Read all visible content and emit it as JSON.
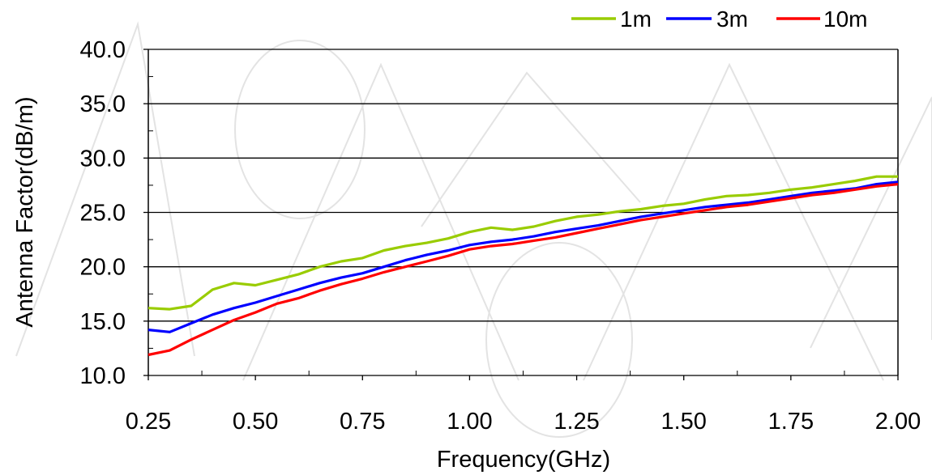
{
  "chart_data": {
    "type": "line",
    "title": "",
    "xlabel": "Frequency(GHz)",
    "ylabel": "Antenna Factor(dB/m)",
    "xlim": [
      0.25,
      2.0
    ],
    "ylim": [
      10.0,
      40.0
    ],
    "x_ticks": [
      "0.25",
      "0.50",
      "0.75",
      "1.00",
      "1.25",
      "1.50",
      "1.75",
      "2.00"
    ],
    "y_ticks": [
      "10.0",
      "15.0",
      "20.0",
      "25.0",
      "30.0",
      "35.0",
      "40.0"
    ],
    "grid": "horizontal",
    "legend_position": "top-right",
    "watermark": "AINFO",
    "colors": {
      "1m": "#99cc00",
      "3m": "#0000ff",
      "10m": "#ff0000",
      "grid": "#000000"
    },
    "x": [
      0.25,
      0.3,
      0.35,
      0.4,
      0.45,
      0.5,
      0.55,
      0.6,
      0.65,
      0.7,
      0.75,
      0.8,
      0.85,
      0.9,
      0.95,
      1.0,
      1.05,
      1.1,
      1.15,
      1.2,
      1.25,
      1.3,
      1.35,
      1.4,
      1.45,
      1.5,
      1.55,
      1.6,
      1.65,
      1.7,
      1.75,
      1.8,
      1.85,
      1.9,
      1.95,
      2.0
    ],
    "series": [
      {
        "name": "1m",
        "values": [
          16.2,
          16.1,
          16.4,
          17.9,
          18.5,
          18.3,
          18.8,
          19.3,
          20.0,
          20.5,
          20.8,
          21.5,
          21.9,
          22.2,
          22.6,
          23.2,
          23.6,
          23.4,
          23.7,
          24.2,
          24.6,
          24.8,
          25.1,
          25.3,
          25.6,
          25.8,
          26.2,
          26.5,
          26.6,
          26.8,
          27.1,
          27.3,
          27.6,
          27.9,
          28.3,
          28.3
        ]
      },
      {
        "name": "3m",
        "values": [
          14.2,
          14.0,
          14.8,
          15.6,
          16.2,
          16.7,
          17.3,
          17.9,
          18.5,
          19.0,
          19.4,
          20.0,
          20.6,
          21.1,
          21.5,
          22.0,
          22.3,
          22.5,
          22.8,
          23.2,
          23.5,
          23.8,
          24.2,
          24.6,
          24.9,
          25.2,
          25.5,
          25.7,
          25.9,
          26.2,
          26.5,
          26.8,
          27.0,
          27.2,
          27.6,
          27.8
        ]
      },
      {
        "name": "10m",
        "values": [
          11.9,
          12.3,
          13.3,
          14.2,
          15.1,
          15.8,
          16.6,
          17.1,
          17.8,
          18.4,
          18.9,
          19.5,
          20.0,
          20.5,
          21.0,
          21.6,
          21.9,
          22.1,
          22.4,
          22.7,
          23.1,
          23.5,
          23.9,
          24.3,
          24.6,
          24.9,
          25.2,
          25.5,
          25.7,
          26.0,
          26.3,
          26.6,
          26.8,
          27.1,
          27.4,
          27.6
        ]
      }
    ]
  }
}
